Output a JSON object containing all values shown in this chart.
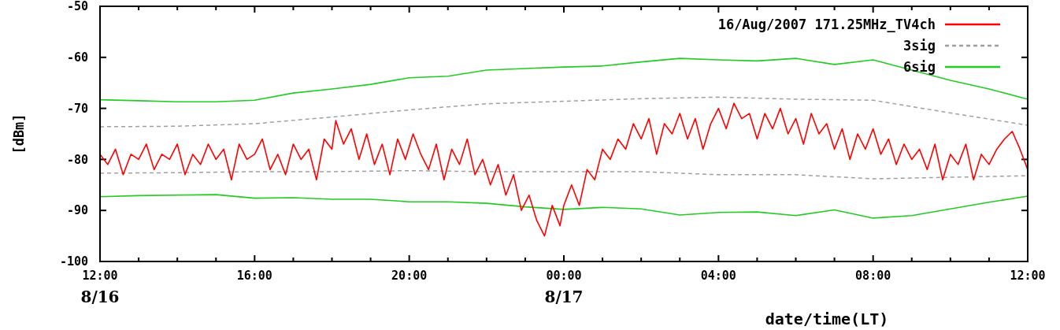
{
  "chart_data": {
    "type": "line",
    "xlabel": "date/time(LT)",
    "ylabel": "[dBm]",
    "xlim": [
      "2007-08-16T12:00",
      "2007-08-17T12:00"
    ],
    "ylim": [
      -100,
      -50
    ],
    "xticks": [
      {
        "value": "2007-08-16T12:00",
        "label": "12:00\n8/16"
      },
      {
        "value": "2007-08-16T13:00",
        "label": null
      },
      {
        "value": "2007-08-16T14:00",
        "label": null
      },
      {
        "value": "2007-08-16T15:00",
        "label": null
      },
      {
        "value": "2007-08-16T16:00",
        "label": "16:00"
      },
      {
        "value": "2007-08-16T17:00",
        "label": null
      },
      {
        "value": "2007-08-16T18:00",
        "label": null
      },
      {
        "value": "2007-08-16T19:00",
        "label": null
      },
      {
        "value": "2007-08-16T20:00",
        "label": "20:00"
      },
      {
        "value": "2007-08-16T21:00",
        "label": null
      },
      {
        "value": "2007-08-16T22:00",
        "label": null
      },
      {
        "value": "2007-08-16T23:00",
        "label": null
      },
      {
        "value": "2007-08-17T00:00",
        "label": "00:00\n8/17"
      },
      {
        "value": "2007-08-17T01:00",
        "label": null
      },
      {
        "value": "2007-08-17T02:00",
        "label": null
      },
      {
        "value": "2007-08-17T03:00",
        "label": null
      },
      {
        "value": "2007-08-17T04:00",
        "label": "04:00"
      },
      {
        "value": "2007-08-17T05:00",
        "label": null
      },
      {
        "value": "2007-08-17T06:00",
        "label": null
      },
      {
        "value": "2007-08-17T07:00",
        "label": null
      },
      {
        "value": "2007-08-17T08:00",
        "label": "08:00"
      },
      {
        "value": "2007-08-17T09:00",
        "label": null
      },
      {
        "value": "2007-08-17T10:00",
        "label": null
      },
      {
        "value": "2007-08-17T11:00",
        "label": null
      },
      {
        "value": "2007-08-17T12:00",
        "label": "12:00"
      }
    ],
    "yticks": [
      -100,
      -90,
      -80,
      -70,
      -60,
      -50
    ],
    "legend": "top right",
    "grid": false,
    "marker": "none",
    "series": [
      {
        "name": "16/Aug/2007 171.25MHz_TV4ch",
        "color": "#ff0000",
        "line_style": "solid",
        "x": [
          "2007-08-16T12:00",
          "2007-08-16T12:12",
          "2007-08-16T12:24",
          "2007-08-16T12:36",
          "2007-08-16T12:48",
          "2007-08-16T13:00",
          "2007-08-16T13:12",
          "2007-08-16T13:24",
          "2007-08-16T13:36",
          "2007-08-16T13:48",
          "2007-08-16T14:00",
          "2007-08-16T14:12",
          "2007-08-16T14:24",
          "2007-08-16T14:36",
          "2007-08-16T14:48",
          "2007-08-16T15:00",
          "2007-08-16T15:12",
          "2007-08-16T15:24",
          "2007-08-16T15:36",
          "2007-08-16T15:48",
          "2007-08-16T16:00",
          "2007-08-16T16:12",
          "2007-08-16T16:24",
          "2007-08-16T16:36",
          "2007-08-16T16:48",
          "2007-08-16T17:00",
          "2007-08-16T17:12",
          "2007-08-16T17:24",
          "2007-08-16T17:36",
          "2007-08-16T17:48",
          "2007-08-16T18:00",
          "2007-08-16T18:06",
          "2007-08-16T18:18",
          "2007-08-16T18:30",
          "2007-08-16T18:42",
          "2007-08-16T18:54",
          "2007-08-16T19:06",
          "2007-08-16T19:18",
          "2007-08-16T19:30",
          "2007-08-16T19:42",
          "2007-08-16T19:54",
          "2007-08-16T20:06",
          "2007-08-16T20:18",
          "2007-08-16T20:30",
          "2007-08-16T20:42",
          "2007-08-16T20:54",
          "2007-08-16T21:06",
          "2007-08-16T21:18",
          "2007-08-16T21:30",
          "2007-08-16T21:42",
          "2007-08-16T21:54",
          "2007-08-16T22:06",
          "2007-08-16T22:18",
          "2007-08-16T22:30",
          "2007-08-16T22:42",
          "2007-08-16T22:54",
          "2007-08-16T23:06",
          "2007-08-16T23:18",
          "2007-08-16T23:30",
          "2007-08-16T23:42",
          "2007-08-16T23:54",
          "2007-08-17T00:00",
          "2007-08-17T00:12",
          "2007-08-17T00:24",
          "2007-08-17T00:36",
          "2007-08-17T00:48",
          "2007-08-17T01:00",
          "2007-08-17T01:12",
          "2007-08-17T01:24",
          "2007-08-17T01:36",
          "2007-08-17T01:48",
          "2007-08-17T02:00",
          "2007-08-17T02:12",
          "2007-08-17T02:24",
          "2007-08-17T02:36",
          "2007-08-17T02:48",
          "2007-08-17T03:00",
          "2007-08-17T03:12",
          "2007-08-17T03:24",
          "2007-08-17T03:36",
          "2007-08-17T03:48",
          "2007-08-17T04:00",
          "2007-08-17T04:12",
          "2007-08-17T04:24",
          "2007-08-17T04:36",
          "2007-08-17T04:48",
          "2007-08-17T05:00",
          "2007-08-17T05:12",
          "2007-08-17T05:24",
          "2007-08-17T05:36",
          "2007-08-17T05:48",
          "2007-08-17T06:00",
          "2007-08-17T06:12",
          "2007-08-17T06:24",
          "2007-08-17T06:36",
          "2007-08-17T06:48",
          "2007-08-17T07:00",
          "2007-08-17T07:12",
          "2007-08-17T07:24",
          "2007-08-17T07:36",
          "2007-08-17T07:48",
          "2007-08-17T08:00",
          "2007-08-17T08:12",
          "2007-08-17T08:24",
          "2007-08-17T08:36",
          "2007-08-17T08:48",
          "2007-08-17T09:00",
          "2007-08-17T09:12",
          "2007-08-17T09:24",
          "2007-08-17T09:36",
          "2007-08-17T09:48",
          "2007-08-17T10:00",
          "2007-08-17T10:12",
          "2007-08-17T10:24",
          "2007-08-17T10:36",
          "2007-08-17T10:48",
          "2007-08-17T11:00",
          "2007-08-17T11:12",
          "2007-08-17T11:24",
          "2007-08-17T11:36",
          "2007-08-17T11:48",
          "2007-08-17T12:00"
        ],
        "values": [
          -79,
          -81,
          -78,
          -83,
          -79,
          -80,
          -77,
          -82,
          -79,
          -80,
          -77,
          -83,
          -79,
          -81,
          -77,
          -80,
          -78,
          -84,
          -77,
          -80,
          -79,
          -76,
          -82,
          -79,
          -83,
          -77,
          -80,
          -78,
          -84,
          -76,
          -78,
          -72.4,
          -77,
          -74,
          -80,
          -75,
          -81,
          -77,
          -83,
          -76,
          -80,
          -75,
          -79,
          -82,
          -77,
          -84,
          -78,
          -81,
          -76,
          -83,
          -80,
          -85,
          -81,
          -87,
          -83,
          -90,
          -87,
          -92,
          -95,
          -89,
          -93,
          -89,
          -85,
          -89,
          -82,
          -84,
          -78,
          -80,
          -76,
          -78,
          -73,
          -76,
          -72,
          -79,
          -73,
          -75,
          -71,
          -76,
          -72,
          -78,
          -73,
          -70,
          -74,
          -69,
          -72,
          -71,
          -76,
          -71,
          -74,
          -70,
          -75,
          -72,
          -77,
          -71,
          -75,
          -73,
          -78,
          -74,
          -80,
          -75,
          -78,
          -74,
          -79,
          -76,
          -81,
          -77,
          -80,
          -78,
          -82,
          -77,
          -84,
          -79,
          -81,
          -77,
          -84,
          -79,
          -81,
          -78,
          -76,
          -74.5,
          -78,
          -82
        ]
      },
      {
        "name": "3sig",
        "color": "#a0a0a0",
        "line_style": "dashed",
        "x": [
          "2007-08-16T12:00",
          "2007-08-16T14:00",
          "2007-08-16T16:00",
          "2007-08-16T18:00",
          "2007-08-16T20:00",
          "2007-08-16T22:00",
          "2007-08-17T00:00",
          "2007-08-17T02:00",
          "2007-08-17T04:00",
          "2007-08-17T06:00",
          "2007-08-17T08:00",
          "2007-08-17T10:00",
          "2007-08-17T12:00"
        ],
        "values": [
          -73.6,
          -73.5,
          -73.0,
          -71.7,
          -70.3,
          -69.1,
          -68.6,
          -68.1,
          -67.8,
          -68.2,
          -68.4,
          -70.9,
          -73.3
        ]
      },
      {
        "color": "#a0a0a0",
        "line_style": "dashed",
        "x": [
          "2007-08-16T12:00",
          "2007-08-16T14:00",
          "2007-08-16T16:00",
          "2007-08-16T18:00",
          "2007-08-16T20:00",
          "2007-08-16T22:00",
          "2007-08-17T00:00",
          "2007-08-17T02:00",
          "2007-08-17T04:00",
          "2007-08-17T06:00",
          "2007-08-17T08:00",
          "2007-08-17T10:00",
          "2007-08-17T12:00"
        ],
        "values": [
          -82.7,
          -82.6,
          -82.4,
          -82.4,
          -82.2,
          -82.4,
          -82.4,
          -82.4,
          -83.0,
          -83.0,
          -83.8,
          -83.5,
          -83.2
        ]
      },
      {
        "name": "6sig",
        "color": "#22cc22",
        "line_style": "solid",
        "x": [
          "2007-08-16T12:00",
          "2007-08-16T13:00",
          "2007-08-16T14:00",
          "2007-08-16T15:00",
          "2007-08-16T16:00",
          "2007-08-16T17:00",
          "2007-08-16T18:00",
          "2007-08-16T19:00",
          "2007-08-16T20:00",
          "2007-08-16T21:00",
          "2007-08-16T22:00",
          "2007-08-16T23:00",
          "2007-08-17T00:00",
          "2007-08-17T01:00",
          "2007-08-17T02:00",
          "2007-08-17T03:00",
          "2007-08-17T04:00",
          "2007-08-17T05:00",
          "2007-08-17T06:00",
          "2007-08-17T07:00",
          "2007-08-17T08:00",
          "2007-08-17T09:00",
          "2007-08-17T10:00",
          "2007-08-17T11:00",
          "2007-08-17T12:00"
        ],
        "values": [
          -68.3,
          -68.5,
          -68.7,
          -68.7,
          -68.4,
          -67.0,
          -66.2,
          -65.3,
          -64.0,
          -63.7,
          -62.5,
          -62.2,
          -61.9,
          -61.7,
          -60.9,
          -60.2,
          -60.5,
          -60.7,
          -60.2,
          -61.4,
          -60.5,
          -62.5,
          -64.5,
          -66.2,
          -68.2
        ]
      },
      {
        "color": "#22cc22",
        "line_style": "solid",
        "x": [
          "2007-08-16T12:00",
          "2007-08-16T13:00",
          "2007-08-16T14:00",
          "2007-08-16T15:00",
          "2007-08-16T16:00",
          "2007-08-16T17:00",
          "2007-08-16T18:00",
          "2007-08-16T19:00",
          "2007-08-16T20:00",
          "2007-08-16T21:00",
          "2007-08-16T22:00",
          "2007-08-16T23:00",
          "2007-08-17T00:00",
          "2007-08-17T01:00",
          "2007-08-17T02:00",
          "2007-08-17T03:00",
          "2007-08-17T04:00",
          "2007-08-17T05:00",
          "2007-08-17T06:00",
          "2007-08-17T07:00",
          "2007-08-17T08:00",
          "2007-08-17T09:00",
          "2007-08-17T10:00",
          "2007-08-17T11:00",
          "2007-08-17T12:00"
        ],
        "values": [
          -87.3,
          -87.1,
          -87.0,
          -86.9,
          -87.6,
          -87.5,
          -87.8,
          -87.8,
          -88.3,
          -88.3,
          -88.6,
          -89.3,
          -89.8,
          -89.4,
          -89.7,
          -90.9,
          -90.4,
          -90.3,
          -91.0,
          -89.9,
          -91.5,
          -91.0,
          -89.7,
          -88.4,
          -87.2
        ]
      }
    ]
  }
}
